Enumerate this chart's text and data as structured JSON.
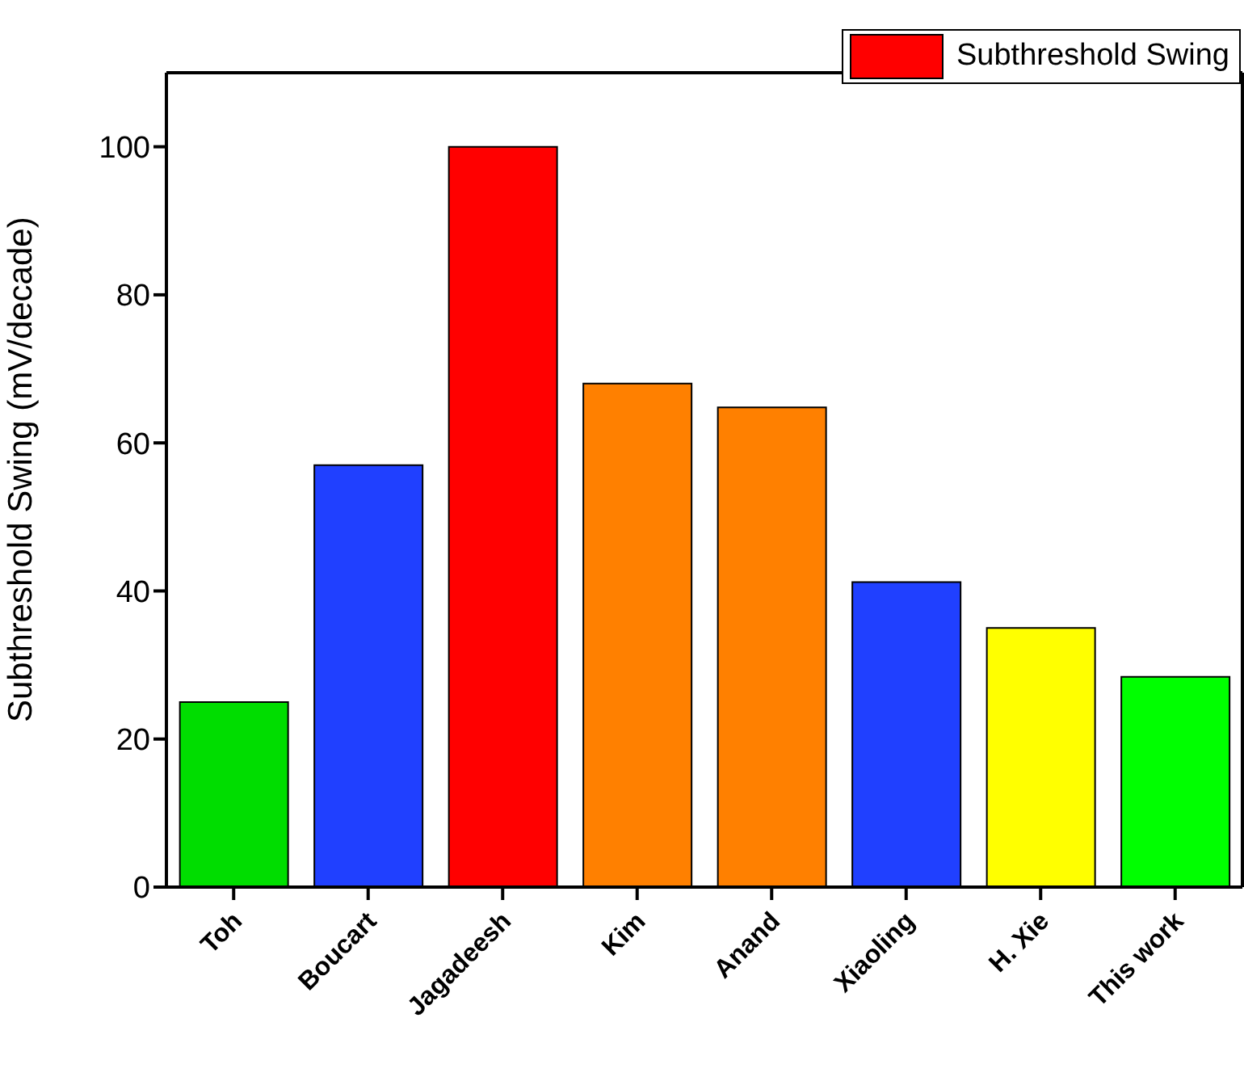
{
  "chart_data": {
    "type": "bar",
    "ylabel": "Subthreshold Swing (mV/decade)",
    "categories": [
      "Toh",
      "Boucart",
      "Jagadeesh",
      "Kim",
      "Anand",
      "Xiaoling",
      "H. Xie",
      "This work"
    ],
    "series": [
      {
        "name": "Subthreshold Swing",
        "color": "#ff0000",
        "values": [
          25,
          57,
          100,
          68,
          64.8,
          41.2,
          35,
          28.4
        ],
        "colors": [
          "#00dd00",
          "#2040ff",
          "#ff0000",
          "#ff8000",
          "#ff8000",
          "#2040ff",
          "#ffff00",
          "#00ff00"
        ]
      }
    ],
    "ylim": [
      0,
      110
    ],
    "yticks": [
      0,
      20,
      40,
      60,
      80,
      100
    ],
    "legend": "top right",
    "grid": false
  }
}
